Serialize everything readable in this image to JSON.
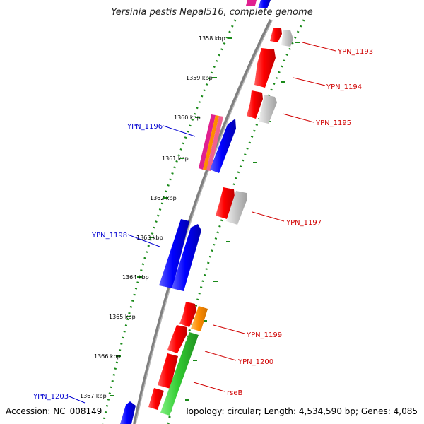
{
  "map": {
    "title": "Yersinia pestis Nepal516, complete genome",
    "accession": "Accession: NC_008149",
    "topology": "Topology: circular; Length: 4,534,590 bp; Genes: 4,085"
  },
  "colors": {
    "forward_label": "#d00000",
    "reverse_label": "#0000d0",
    "dots": "#1a8a1a",
    "backbone": "#808080",
    "cds_forward": "#ff0000",
    "cds_reverse": "#0000ff",
    "gray": "#c0c0c0",
    "orange": "#ff8c00",
    "green": "#33cc33",
    "magenta": "#e0208f"
  },
  "ticks": [
    "1358 kbp",
    "1359 kbp",
    "1360 kbp",
    "1361 kbp",
    "1362 kbp",
    "1363 kbp",
    "1364 kbp",
    "1365 kbp",
    "1366 kbp",
    "1367 kbp"
  ],
  "forward_labels": [
    "YPN_1193",
    "YPN_1194",
    "YPN_1195",
    "YPN_1197",
    "YPN_1199",
    "YPN_1200",
    "rseB"
  ],
  "reverse_labels": [
    "YPN_1196",
    "YPN_1198",
    "YPN_1203"
  ]
}
